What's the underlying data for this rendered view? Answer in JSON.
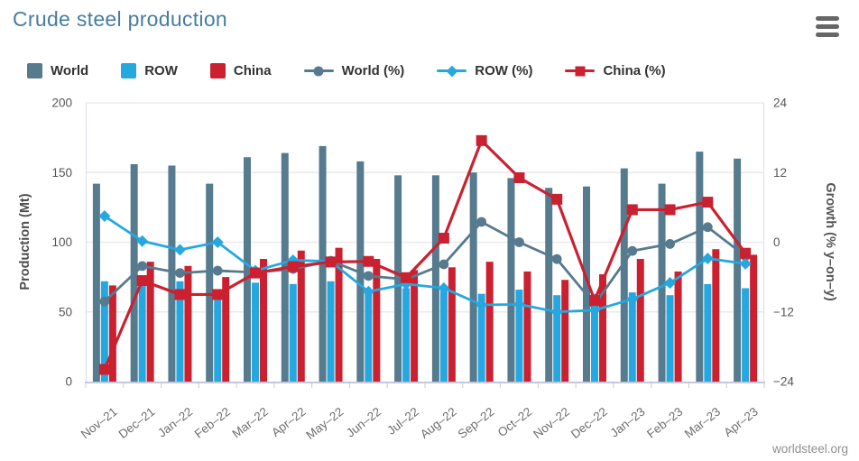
{
  "header": {
    "title": "Crude steel production",
    "menu_icon": "hamburger-menu-icon"
  },
  "legend": {
    "items": [
      {
        "label": "World"
      },
      {
        "label": "ROW"
      },
      {
        "label": "China"
      },
      {
        "label": "World (%)"
      },
      {
        "label": "ROW (%)"
      },
      {
        "label": "China (%)"
      }
    ]
  },
  "footer": {
    "source": "worldsteel.org"
  },
  "colors": {
    "title": "#467da0",
    "legend_text": "#333333",
    "menu_icon": "#666666",
    "grid": "#e9e9ef",
    "axis_line": "#dcdde8",
    "baseline": "#c3c8de",
    "tick": "#c9c9d4",
    "axis_text": "#555555",
    "axis_title": "#4d4d4d",
    "x_label": "#6e6e6e",
    "footer_text": "#8f8f8f"
  },
  "chart_data": {
    "type": "combo-bar-line",
    "title": "Crude steel production",
    "grid": true,
    "legend_position": "top",
    "categories": [
      "Nov–21",
      "Dec–21",
      "Jan–22",
      "Feb–22",
      "Mar–22",
      "Apr–22",
      "May–22",
      "Jun–22",
      "Jul–22",
      "Aug–22",
      "Sep–22",
      "Oct–22",
      "Nov–22",
      "Dec–22",
      "Jan–23",
      "Feb–23",
      "Mar–23",
      "Apr–23"
    ],
    "series": [
      {
        "name": "World",
        "type": "bar",
        "axis": "left",
        "color": "#567a8e",
        "values": [
          142,
          156,
          155,
          142,
          161,
          164,
          169,
          158,
          148,
          148,
          150,
          146,
          139,
          140,
          153,
          142,
          165,
          160
        ]
      },
      {
        "name": "ROW",
        "type": "bar",
        "axis": "left",
        "color": "#25a8e0",
        "values": [
          72,
          69,
          72,
          66,
          71,
          70,
          72,
          66,
          67,
          65,
          63,
          66,
          62,
          63,
          64,
          62,
          70,
          67
        ]
      },
      {
        "name": "China",
        "type": "bar",
        "axis": "left",
        "color": "#cb2030",
        "values": [
          69,
          86,
          83,
          75,
          88,
          94,
          96,
          88,
          80,
          82,
          86,
          79,
          73,
          77,
          88,
          79,
          95,
          91
        ]
      },
      {
        "name": "World (%)",
        "type": "line",
        "marker": "circle",
        "axis": "right",
        "color": "#567a8e",
        "values": [
          -10.2,
          -4.1,
          -5.3,
          -4.9,
          -5.2,
          -4.6,
          -3.2,
          -5.8,
          -6.4,
          -3.8,
          3.5,
          0,
          -2.9,
          -10.7,
          -1.5,
          -0.3,
          2.6,
          -2.4
        ]
      },
      {
        "name": "ROW (%)",
        "type": "line",
        "marker": "diamond",
        "axis": "right",
        "color": "#25a8e0",
        "values": [
          4.5,
          0.2,
          -1.3,
          0,
          -4.9,
          -3.1,
          -3.3,
          -8.5,
          -7.2,
          -7.9,
          -10.8,
          -10.7,
          -12,
          -11.7,
          -9.8,
          -7,
          -2.8,
          -3.7
        ]
      },
      {
        "name": "China (%)",
        "type": "line",
        "marker": "square",
        "axis": "right",
        "color": "#cb2030",
        "values": [
          -21.9,
          -6.6,
          -9,
          -9,
          -5.3,
          -4.2,
          -3.4,
          -3.3,
          -6.1,
          0.7,
          17.5,
          11.1,
          7.4,
          -10,
          5.6,
          5.6,
          6.9,
          -1.9
        ]
      }
    ],
    "left_axis": {
      "label": "Production (Mt)",
      "range": [
        0,
        200
      ],
      "ticks": [
        200,
        150,
        100,
        50,
        0
      ]
    },
    "right_axis": {
      "label": "Growth (% y–on–y)",
      "range": [
        -24,
        24
      ],
      "tick_values": [
        24,
        12,
        0,
        -12,
        -24
      ],
      "tick_labels": [
        "24",
        "12",
        "0",
        "−12",
        "−24"
      ]
    }
  }
}
